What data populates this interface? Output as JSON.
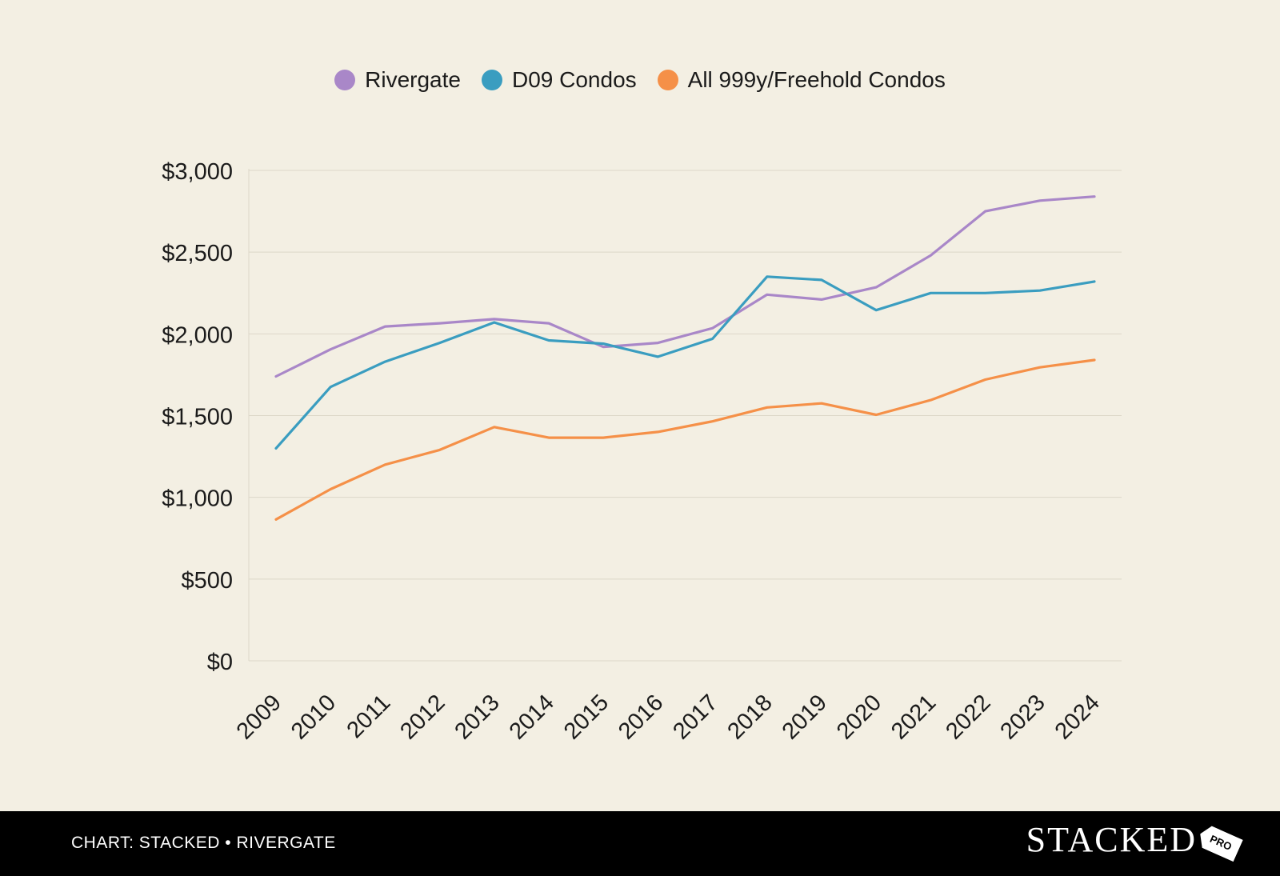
{
  "chart_data": {
    "type": "line",
    "title": "",
    "xlabel": "",
    "ylabel": "",
    "ylim": [
      0,
      3000
    ],
    "y_ticks": [
      0,
      500,
      1000,
      1500,
      2000,
      2500,
      3000
    ],
    "y_tick_labels": [
      "$0",
      "$500",
      "$1,000",
      "$1,500",
      "$2,000",
      "$2,500",
      "$3,000"
    ],
    "categories": [
      "2009",
      "2010",
      "2011",
      "2012",
      "2013",
      "2014",
      "2015",
      "2016",
      "2017",
      "2018",
      "2019",
      "2020",
      "2021",
      "2022",
      "2023",
      "2024"
    ],
    "grid": true,
    "legend_position": "top-center",
    "series": [
      {
        "name": "Rivergate",
        "color": "#a987c8",
        "values": [
          1740,
          1905,
          2045,
          2065,
          2090,
          2065,
          1920,
          1945,
          2035,
          2240,
          2210,
          2285,
          2480,
          2750,
          2815,
          2840
        ]
      },
      {
        "name": "D09 Condos",
        "color": "#3a9dc0",
        "values": [
          1300,
          1675,
          1830,
          1945,
          2070,
          1960,
          1940,
          1860,
          1970,
          2350,
          2330,
          2145,
          2250,
          2250,
          2265,
          2320
        ]
      },
      {
        "name": "All 999y/Freehold Condos",
        "color": "#f59048",
        "values": [
          865,
          1050,
          1200,
          1290,
          1430,
          1365,
          1365,
          1400,
          1465,
          1550,
          1575,
          1505,
          1595,
          1720,
          1795,
          1840
        ]
      }
    ]
  },
  "footer": {
    "credit": "CHART: STACKED • RIVERGATE",
    "brand": "STACKED",
    "brand_tag": "PRO"
  }
}
